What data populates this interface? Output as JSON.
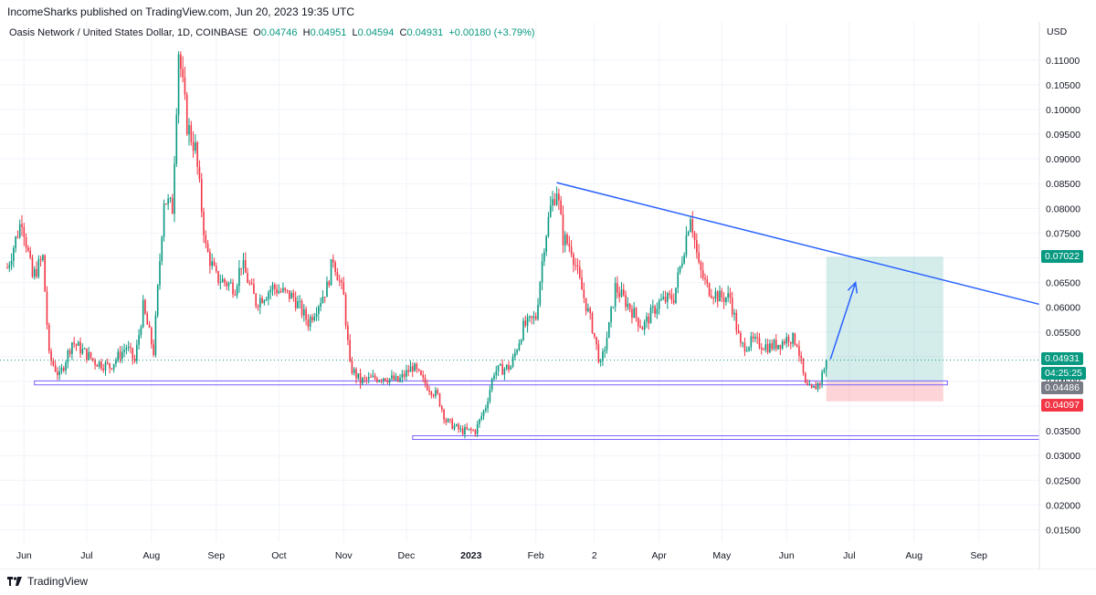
{
  "publisher_line": "IncomeSharks published on TradingView.com, Jun 20, 2023 19:35 UTC",
  "symbol": {
    "name": "Oasis Network / United States Dollar, 1D, COINBASE",
    "o_label": "O",
    "o": "0.04746",
    "h_label": "H",
    "h": "0.04951",
    "l_label": "L",
    "l": "0.04594",
    "c_label": "C",
    "c": "0.04931",
    "change": "+0.00180 (+3.79%)"
  },
  "footer": {
    "brand": "TradingView",
    "logo_icon": "tradingview-logo-icon"
  },
  "colors": {
    "up": "#089981",
    "down": "#f23645",
    "trendline": "#2962ff",
    "zone_border": "#7b61ff",
    "target_fill": "#26a69a",
    "stop_fill": "#f7525f",
    "grid": "#f0f3fa",
    "badge_last": "#089981",
    "badge_entry": "#787b86",
    "badge_target": "#089981",
    "badge_stop": "#f23645"
  },
  "chart_data": {
    "type": "candlestick",
    "y_axis": {
      "unit": "USD",
      "scale": "linear",
      "min": 0.0125,
      "max": 0.1155,
      "ticks": [
        "0.11000",
        "0.10500",
        "0.10000",
        "0.09500",
        "0.09000",
        "0.08500",
        "0.08000",
        "0.07500",
        "0.07000",
        "0.06500",
        "0.06000",
        "0.05500",
        "0.05000",
        "0.04500",
        "0.04000",
        "0.03500",
        "0.03000",
        "0.02500",
        "0.02000",
        "0.01500"
      ]
    },
    "x_axis": {
      "start_date": "2022-05-24",
      "end_date": "2023-09-30",
      "ticks": [
        {
          "label": "Jun",
          "date": "2022-06-01"
        },
        {
          "label": "Jul",
          "date": "2022-07-01"
        },
        {
          "label": "Aug",
          "date": "2022-08-01"
        },
        {
          "label": "Sep",
          "date": "2022-09-01"
        },
        {
          "label": "Oct",
          "date": "2022-10-01"
        },
        {
          "label": "Nov",
          "date": "2022-11-01"
        },
        {
          "label": "Dec",
          "date": "2022-12-01"
        },
        {
          "label": "2023",
          "date": "2023-01-01"
        },
        {
          "label": "Feb",
          "date": "2023-02-01"
        },
        {
          "label": "2",
          "date": "2023-03-01"
        },
        {
          "label": "Apr",
          "date": "2023-04-01"
        },
        {
          "label": "May",
          "date": "2023-05-01"
        },
        {
          "label": "Jun",
          "date": "2023-06-01"
        },
        {
          "label": "Jul",
          "date": "2023-07-01"
        },
        {
          "label": "Aug",
          "date": "2023-08-01"
        },
        {
          "label": "Sep",
          "date": "2023-09-01"
        }
      ]
    },
    "grid": true,
    "price_keypoints": [
      [
        "2022-05-24",
        0.068
      ],
      [
        "2022-05-31",
        0.078
      ],
      [
        "2022-06-05",
        0.066
      ],
      [
        "2022-06-10",
        0.07
      ],
      [
        "2022-06-13",
        0.05
      ],
      [
        "2022-06-18",
        0.046
      ],
      [
        "2022-06-24",
        0.053
      ],
      [
        "2022-07-05",
        0.049
      ],
      [
        "2022-07-12",
        0.048
      ],
      [
        "2022-07-20",
        0.052
      ],
      [
        "2022-07-24",
        0.049
      ],
      [
        "2022-07-28",
        0.06
      ],
      [
        "2022-08-02",
        0.051
      ],
      [
        "2022-08-07",
        0.082
      ],
      [
        "2022-08-11",
        0.08
      ],
      [
        "2022-08-14",
        0.112
      ],
      [
        "2022-08-18",
        0.097
      ],
      [
        "2022-08-22",
        0.092
      ],
      [
        "2022-08-27",
        0.072
      ],
      [
        "2022-09-01",
        0.066
      ],
      [
        "2022-09-10",
        0.064
      ],
      [
        "2022-09-13",
        0.069
      ],
      [
        "2022-09-20",
        0.061
      ],
      [
        "2022-09-28",
        0.064
      ],
      [
        "2022-10-08",
        0.062
      ],
      [
        "2022-10-15",
        0.057
      ],
      [
        "2022-10-24",
        0.064
      ],
      [
        "2022-10-27",
        0.07
      ],
      [
        "2022-11-01",
        0.062
      ],
      [
        "2022-11-04",
        0.048
      ],
      [
        "2022-11-09",
        0.045
      ],
      [
        "2022-11-20",
        0.046
      ],
      [
        "2022-11-27",
        0.045
      ],
      [
        "2022-12-04",
        0.048
      ],
      [
        "2022-12-09",
        0.045
      ],
      [
        "2022-12-16",
        0.042
      ],
      [
        "2022-12-20",
        0.037
      ],
      [
        "2022-12-27",
        0.035
      ],
      [
        "2023-01-03",
        0.035
      ],
      [
        "2023-01-08",
        0.04
      ],
      [
        "2023-01-12",
        0.047
      ],
      [
        "2023-01-20",
        0.048
      ],
      [
        "2023-01-26",
        0.056
      ],
      [
        "2023-02-01",
        0.058
      ],
      [
        "2023-02-05",
        0.073
      ],
      [
        "2023-02-08",
        0.08
      ],
      [
        "2023-02-11",
        0.084
      ],
      [
        "2023-02-14",
        0.074
      ],
      [
        "2023-02-18",
        0.072
      ],
      [
        "2023-02-22",
        0.065
      ],
      [
        "2023-02-28",
        0.056
      ],
      [
        "2023-03-04",
        0.048
      ],
      [
        "2023-03-08",
        0.056
      ],
      [
        "2023-03-11",
        0.064
      ],
      [
        "2023-03-18",
        0.06
      ],
      [
        "2023-03-24",
        0.056
      ],
      [
        "2023-04-01",
        0.061
      ],
      [
        "2023-04-08",
        0.062
      ],
      [
        "2023-04-12",
        0.07
      ],
      [
        "2023-04-16",
        0.079
      ],
      [
        "2023-04-20",
        0.068
      ],
      [
        "2023-04-24",
        0.064
      ],
      [
        "2023-04-30",
        0.062
      ],
      [
        "2023-05-05",
        0.062
      ],
      [
        "2023-05-10",
        0.052
      ],
      [
        "2023-05-16",
        0.053
      ],
      [
        "2023-05-24",
        0.052
      ],
      [
        "2023-05-30",
        0.053
      ],
      [
        "2023-06-02",
        0.054
      ],
      [
        "2023-06-06",
        0.053
      ],
      [
        "2023-06-10",
        0.044
      ],
      [
        "2023-06-13",
        0.043
      ],
      [
        "2023-06-17",
        0.045
      ],
      [
        "2023-06-20",
        0.0493
      ]
    ],
    "last_candle": {
      "date": "2023-06-20",
      "open": 0.04746,
      "high": 0.04951,
      "low": 0.04594,
      "close": 0.04931
    },
    "trendline": {
      "from": [
        "2023-02-11",
        0.0852
      ],
      "to": [
        "2023-09-30",
        0.0606
      ]
    },
    "support_zones": [
      {
        "from_date": "2022-06-06",
        "to_date": "2023-08-17",
        "top": 0.0451,
        "bottom": 0.0443
      },
      {
        "from_date": "2022-12-04",
        "to_date": "2023-09-30",
        "top": 0.034,
        "bottom": 0.0333
      }
    ],
    "position": {
      "from_date": "2023-06-20",
      "to_date": "2023-08-15",
      "entry": 0.04486,
      "target": 0.07022,
      "stop": 0.04097
    },
    "arrow": {
      "from": [
        "2023-06-22",
        0.0495
      ],
      "to": [
        "2023-07-04",
        0.065
      ]
    },
    "price_badges": {
      "last_price": "0.04931",
      "countdown": "04:25:25",
      "entry": "0.04486",
      "target": "0.07022",
      "stop": "0.04097"
    }
  }
}
